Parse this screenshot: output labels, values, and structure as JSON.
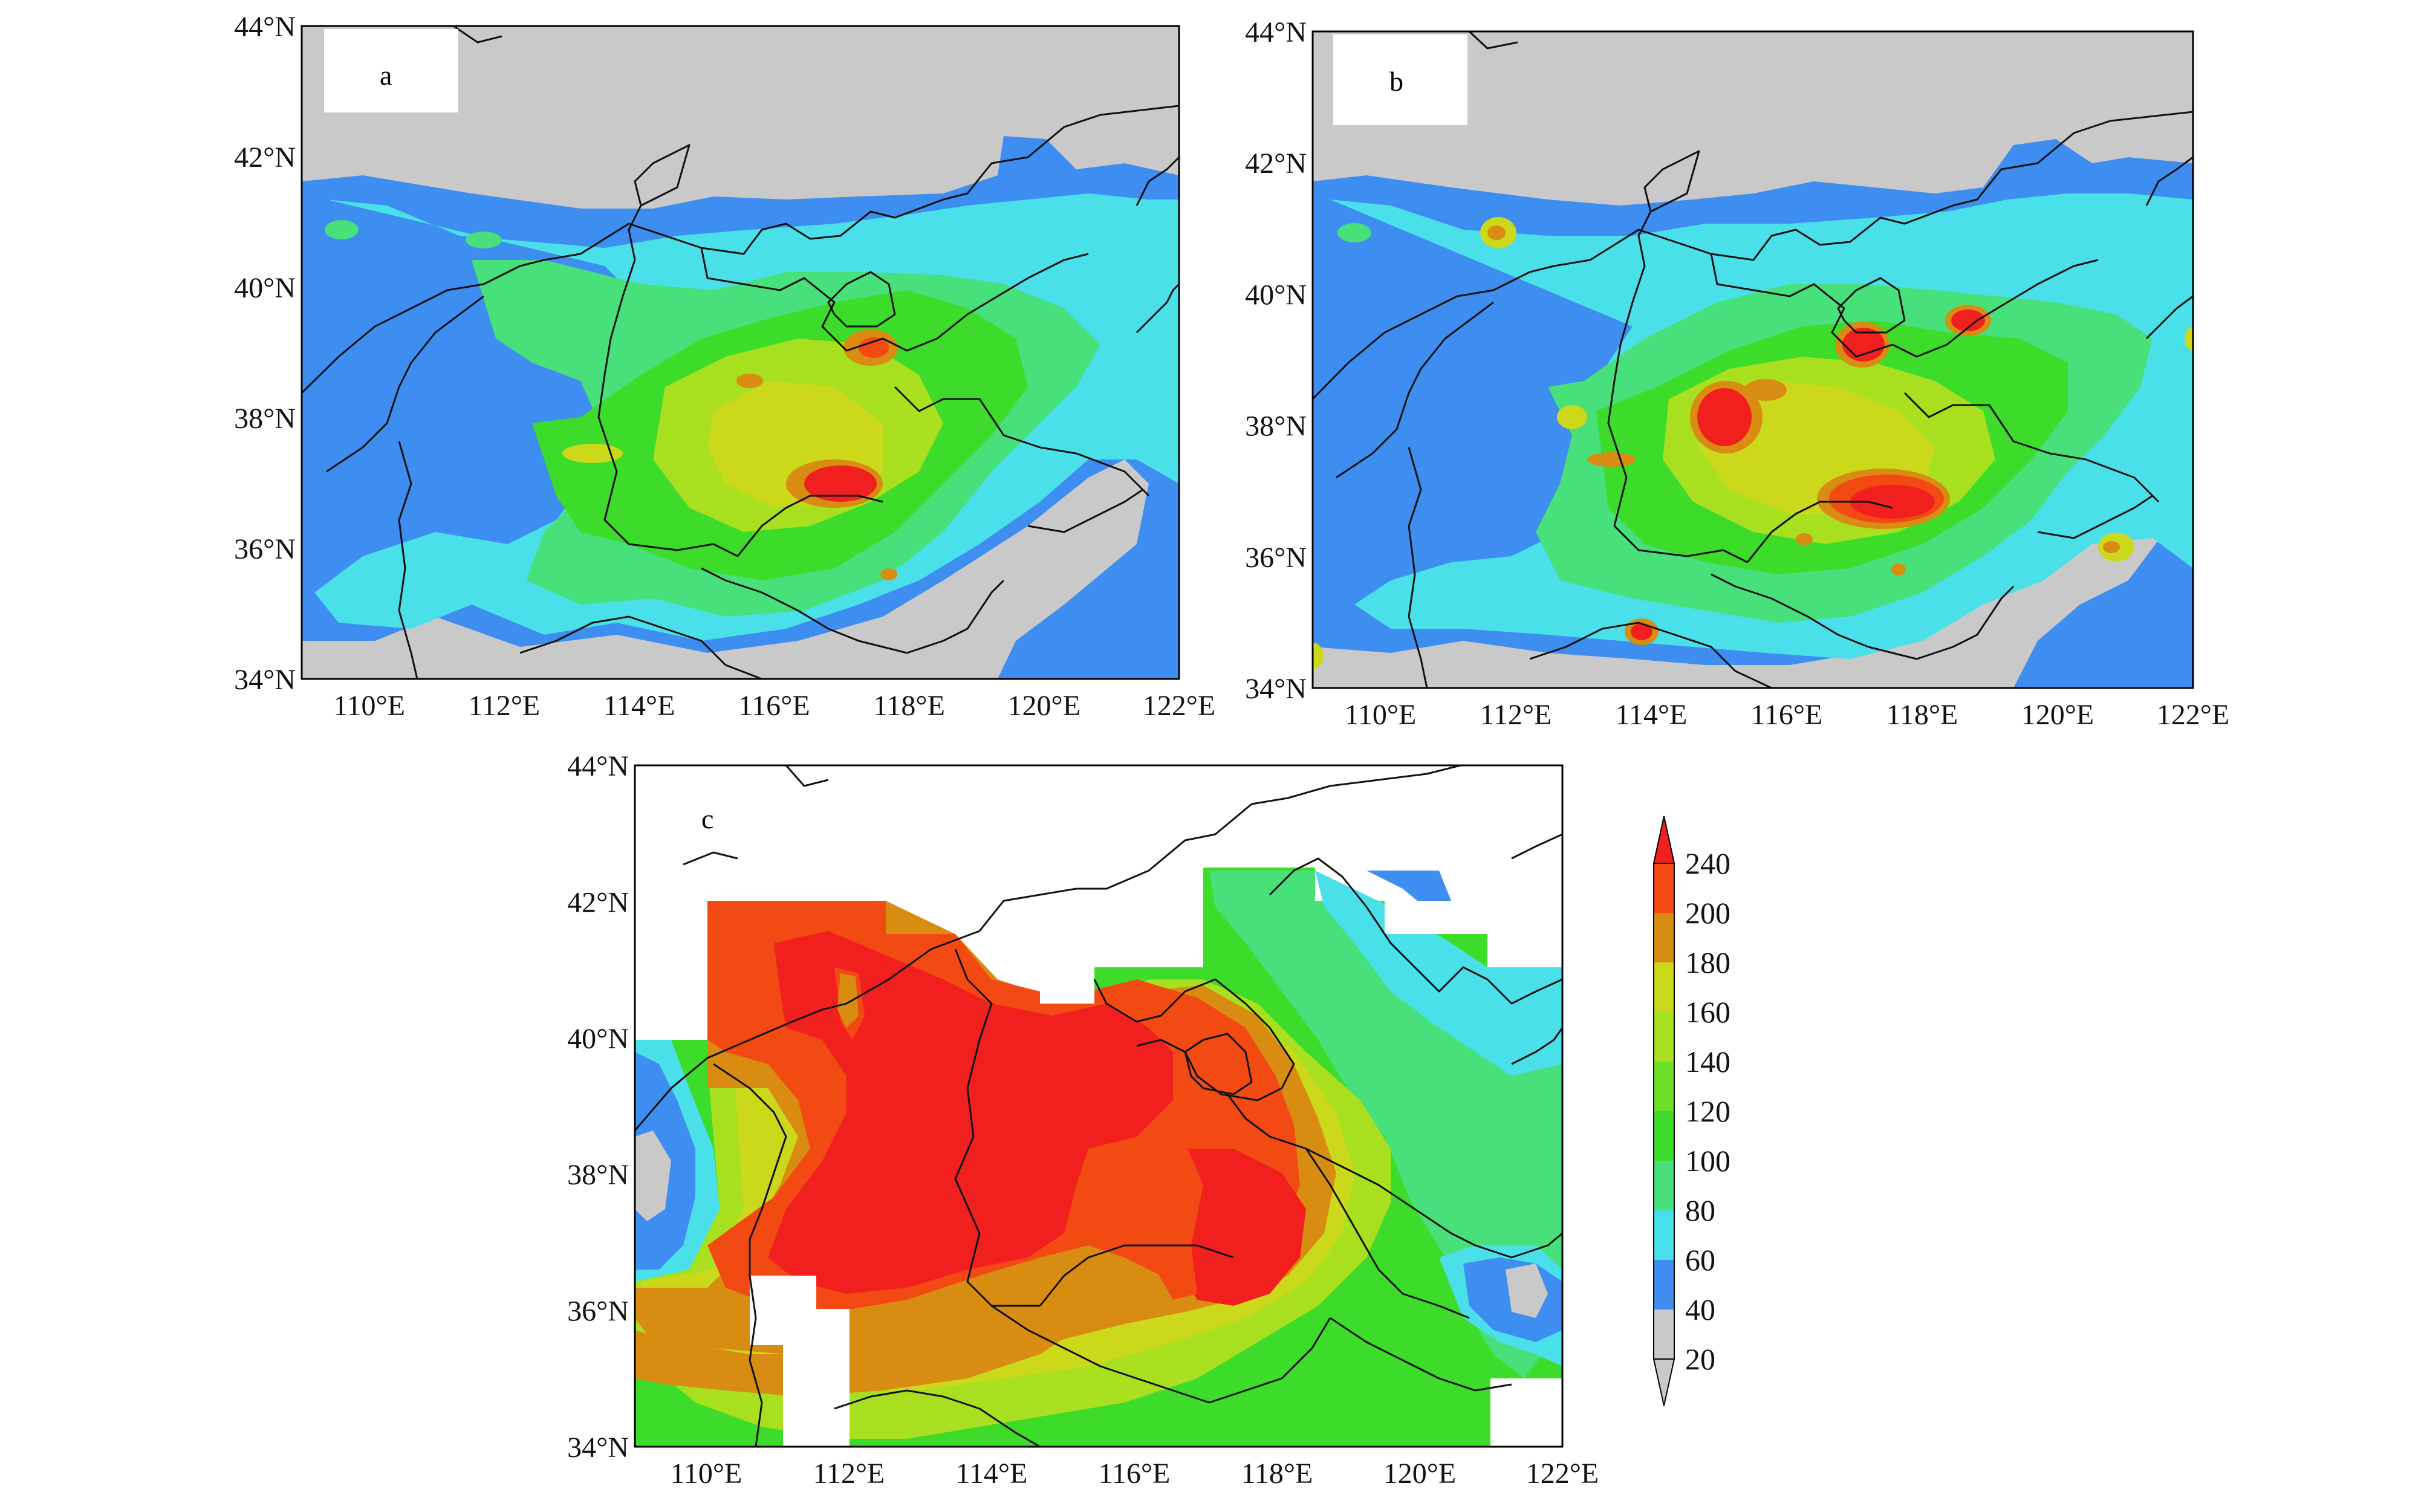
{
  "panels": [
    {
      "id": "a",
      "label": "a"
    },
    {
      "id": "b",
      "label": "b"
    },
    {
      "id": "c",
      "label": "c"
    }
  ],
  "axes": {
    "lat_labels": [
      "44°N",
      "42°N",
      "40°N",
      "38°N",
      "36°N",
      "34°N"
    ],
    "lon_labels": [
      "110°E",
      "112°E",
      "114°E",
      "116°E",
      "118°E",
      "120°E",
      "122°E"
    ]
  },
  "colorbar": {
    "ticks": [
      "240",
      "200",
      "180",
      "160",
      "140",
      "120",
      "100",
      "80",
      "60",
      "40",
      "20"
    ],
    "colors": [
      "#f21f1f",
      "#f24a12",
      "#d98c12",
      "#ccd91a",
      "#a8e01f",
      "#6ee02a",
      "#3ddb2a",
      "#47e07a",
      "#4ae0ea",
      "#3d8ef0",
      "#c9c9c9"
    ]
  },
  "colors": {
    "land_gray": "#c9c9c9",
    "ocean_white": "#ffffff"
  }
}
